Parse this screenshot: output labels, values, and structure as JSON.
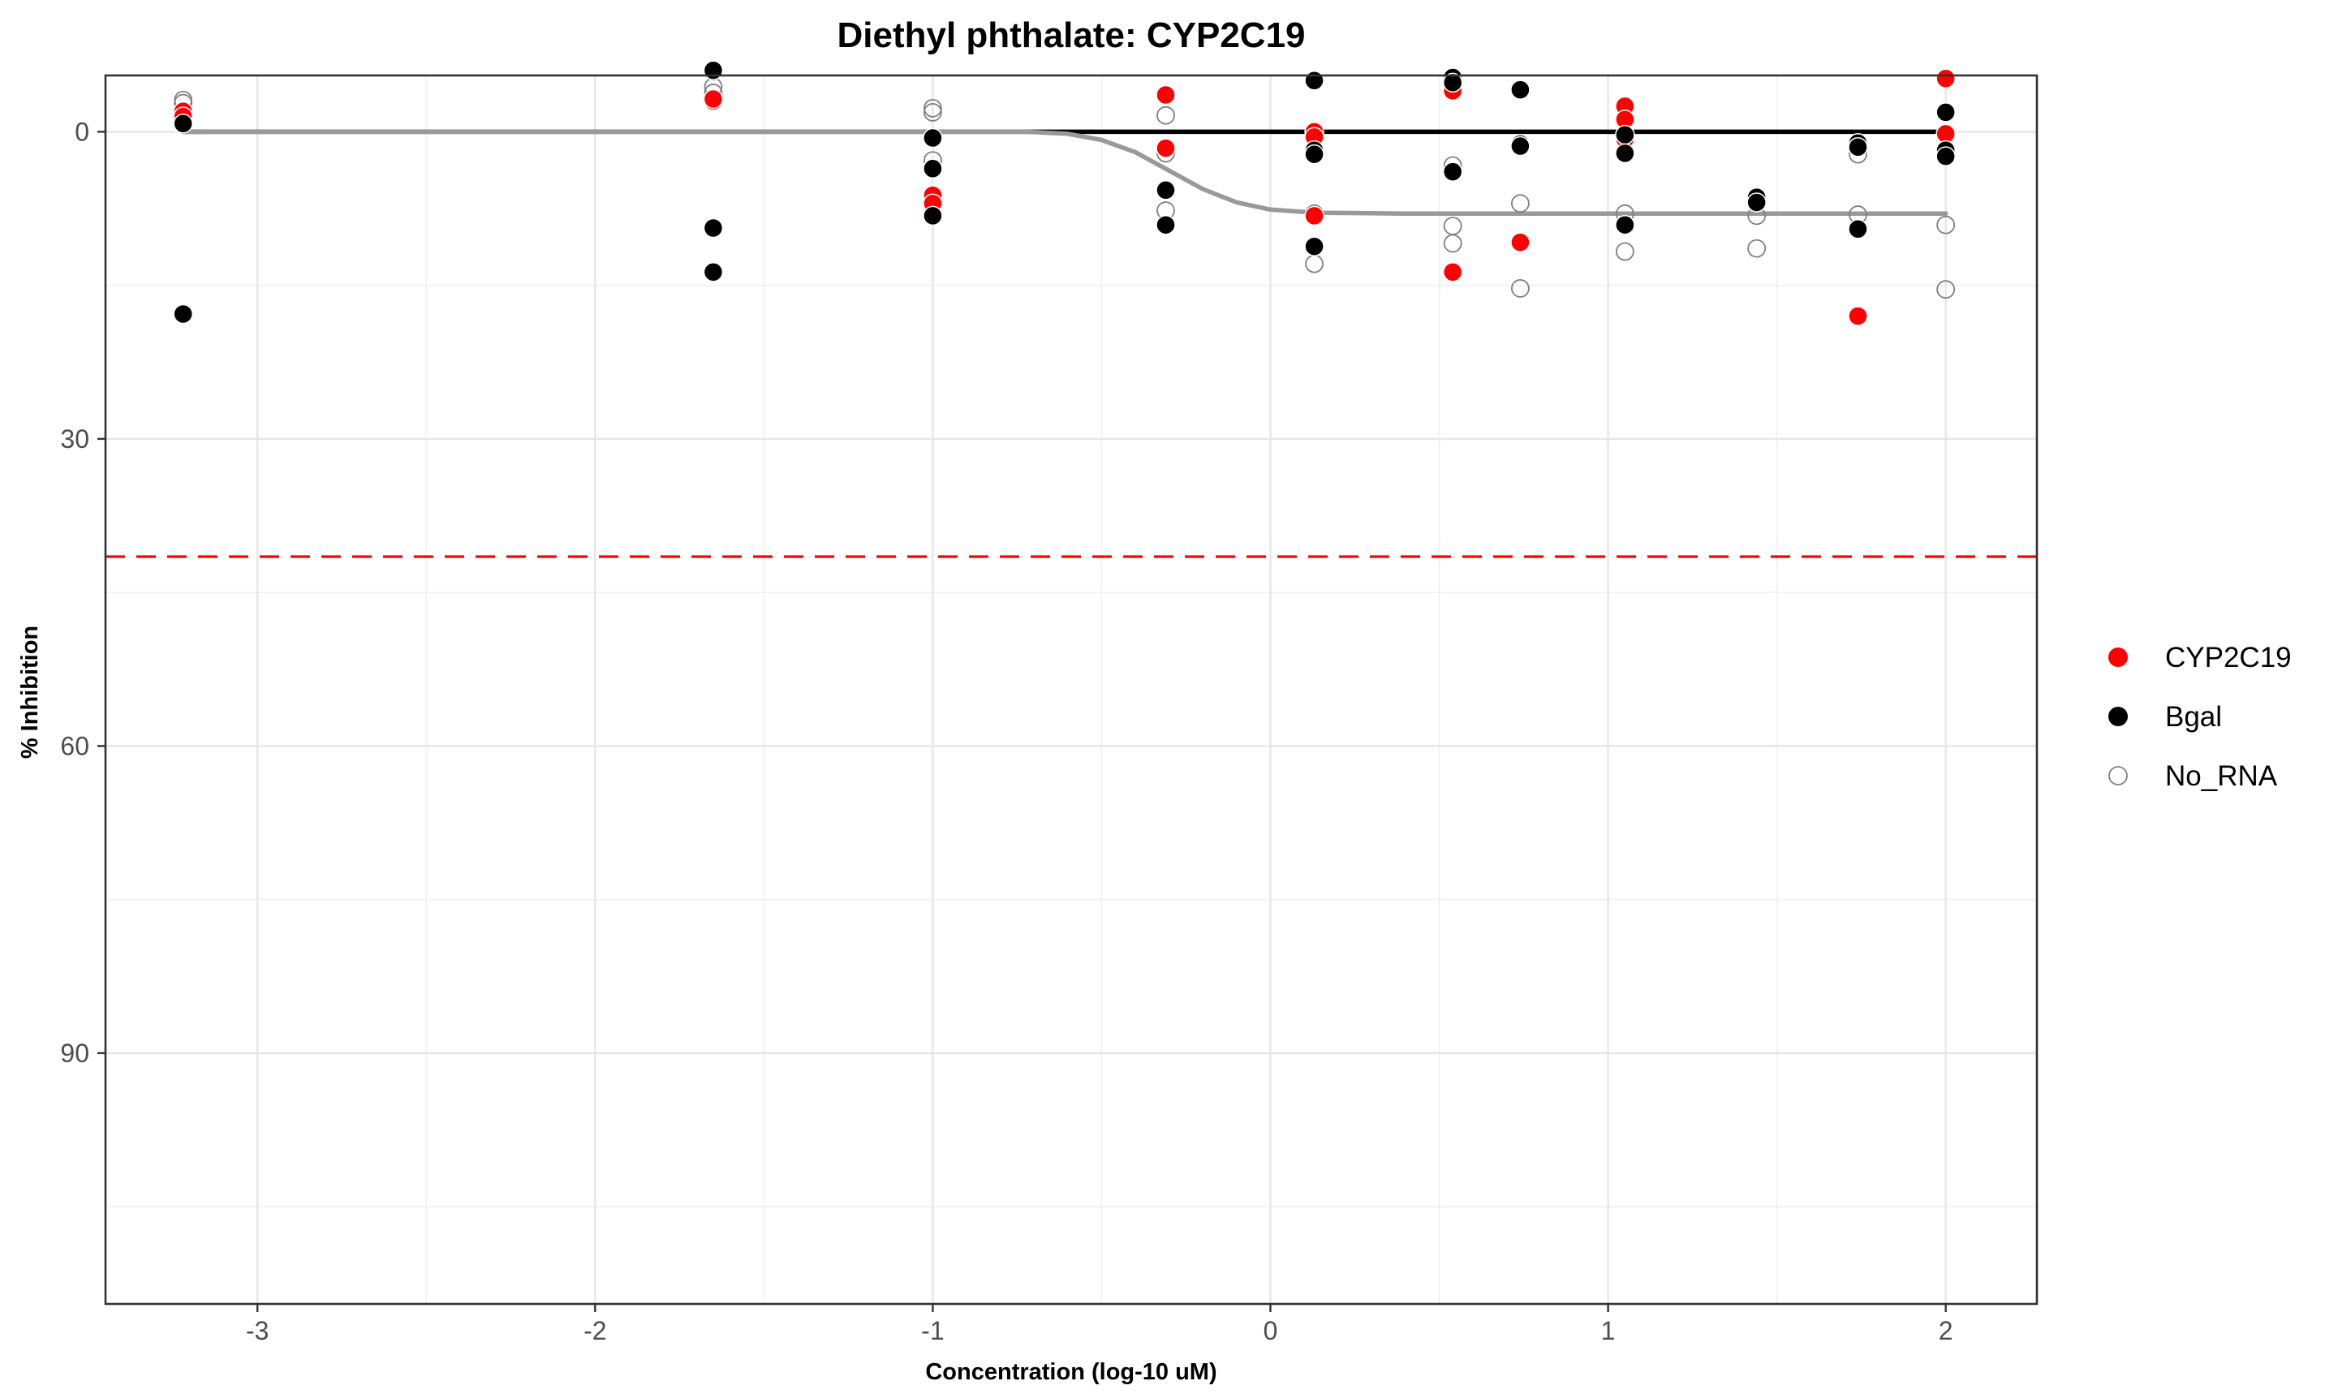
{
  "chart_data": {
    "type": "scatter",
    "title": "Diethyl phthalate: CYP2C19",
    "xlabel": "Concentration (log-10 uM)",
    "ylabel": "% Inhibition",
    "xlim": [
      -3.45,
      2.27
    ],
    "ylim": [
      -5.5,
      114.5
    ],
    "y_reversed": true,
    "x_ticks": [
      -3,
      -2,
      -1,
      0,
      1,
      2
    ],
    "x_tick_labels": [
      "-3",
      "-2",
      "-1",
      "0",
      "1",
      "2"
    ],
    "y_ticks": [
      0,
      30,
      60,
      90
    ],
    "y_tick_labels": [
      "0",
      "30",
      "60",
      "90"
    ],
    "grid": true,
    "legend_position": "right",
    "threshold_line": {
      "y": 41.5,
      "color": "#ff0000",
      "style": "dashed"
    },
    "series": [
      {
        "name": "CYP2C19",
        "color": "#ff0000",
        "marker": "filled-circle",
        "points": [
          [
            -3.22,
            -2
          ],
          [
            -3.22,
            -1.5
          ],
          [
            -1.65,
            -3
          ],
          [
            -1.65,
            -3.2
          ],
          [
            -1.0,
            6.2
          ],
          [
            -1.0,
            7
          ],
          [
            -0.31,
            -3.6
          ],
          [
            -0.31,
            1.6
          ],
          [
            0.13,
            0
          ],
          [
            0.13,
            0.5
          ],
          [
            0.13,
            8.2
          ],
          [
            0.54,
            -4
          ],
          [
            0.54,
            13.7
          ],
          [
            0.74,
            10.8
          ],
          [
            1.05,
            -2.5
          ],
          [
            1.05,
            -1.2
          ],
          [
            1.05,
            0.7
          ],
          [
            1.74,
            18
          ],
          [
            2.0,
            -5.2
          ],
          [
            2.0,
            0.2
          ]
        ]
      },
      {
        "name": "Bgal",
        "color": "#000000",
        "marker": "filled-circle",
        "points": [
          [
            -3.22,
            -0.8
          ],
          [
            -3.22,
            17.8
          ],
          [
            -1.65,
            -6
          ],
          [
            -1.65,
            9.4
          ],
          [
            -1.65,
            13.7
          ],
          [
            -1.0,
            0.6
          ],
          [
            -1.0,
            3.6
          ],
          [
            -1.0,
            8.2
          ],
          [
            -0.31,
            5.7
          ],
          [
            -0.31,
            9.1
          ],
          [
            0.13,
            -5
          ],
          [
            0.13,
            1.8
          ],
          [
            0.13,
            2.2
          ],
          [
            0.13,
            11.2
          ],
          [
            0.54,
            -5.3
          ],
          [
            0.54,
            -4.8
          ],
          [
            0.54,
            3.9
          ],
          [
            0.74,
            -4.1
          ],
          [
            0.74,
            1.2
          ],
          [
            0.74,
            1.4
          ],
          [
            1.05,
            0.3
          ],
          [
            1.05,
            2.1
          ],
          [
            1.05,
            9.1
          ],
          [
            1.44,
            6.4
          ],
          [
            1.44,
            6.9
          ],
          [
            1.74,
            1.1
          ],
          [
            1.74,
            1.5
          ],
          [
            1.74,
            9.5
          ],
          [
            2.0,
            -1.9
          ],
          [
            2.0,
            1.8
          ],
          [
            2.0,
            2.4
          ]
        ]
      },
      {
        "name": "No_RNA",
        "color": "#808080",
        "marker": "open-circle",
        "points": [
          [
            -3.22,
            -3.1
          ],
          [
            -3.22,
            -2.8
          ],
          [
            -1.65,
            -5.9
          ],
          [
            -1.65,
            -4.4
          ],
          [
            -1.65,
            -3.8
          ],
          [
            -1.0,
            -2.3
          ],
          [
            -1.0,
            -1.9
          ],
          [
            -1.0,
            2.8
          ],
          [
            -0.31,
            -1.6
          ],
          [
            -0.31,
            2.1
          ],
          [
            -0.31,
            7.7
          ],
          [
            0.13,
            8
          ],
          [
            0.13,
            12.9
          ],
          [
            0.54,
            3.3
          ],
          [
            0.54,
            9.2
          ],
          [
            0.54,
            10.9
          ],
          [
            0.74,
            7
          ],
          [
            0.74,
            15.3
          ],
          [
            1.05,
            8
          ],
          [
            1.05,
            11.7
          ],
          [
            1.44,
            8.2
          ],
          [
            1.44,
            11.4
          ],
          [
            1.74,
            2.2
          ],
          [
            1.74,
            8.1
          ],
          [
            2.0,
            9.1
          ],
          [
            2.0,
            15.4
          ]
        ]
      }
    ],
    "fit_curves": [
      {
        "series": "Bgal",
        "color": "#000000",
        "points": [
          [
            -3.22,
            0
          ],
          [
            2.0,
            0
          ]
        ]
      },
      {
        "series": "No_RNA",
        "color": "#999999",
        "points": [
          [
            -3.22,
            0
          ],
          [
            -0.72,
            0
          ],
          [
            -0.6,
            0.2
          ],
          [
            -0.5,
            0.8
          ],
          [
            -0.4,
            2
          ],
          [
            -0.3,
            3.8
          ],
          [
            -0.2,
            5.6
          ],
          [
            -0.1,
            6.9
          ],
          [
            0.0,
            7.6
          ],
          [
            0.13,
            7.9
          ],
          [
            0.4,
            8.0
          ],
          [
            2.0,
            8.0
          ]
        ]
      }
    ]
  }
}
